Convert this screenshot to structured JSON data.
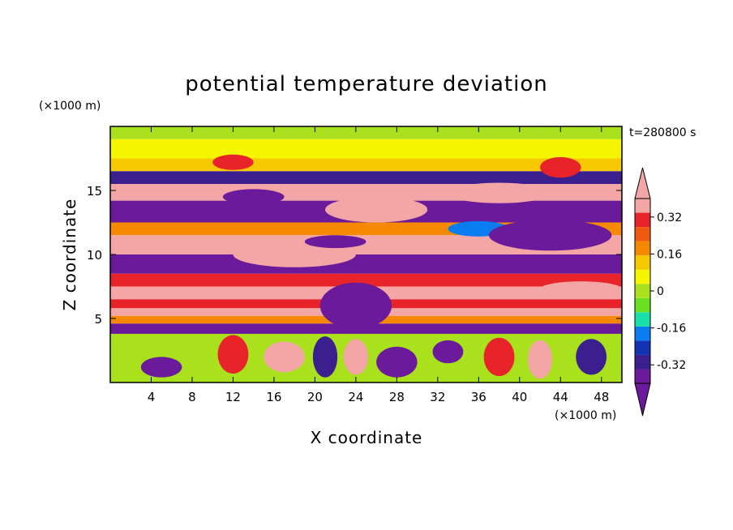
{
  "chart_data": {
    "type": "heatmap",
    "title": "potential temperature deviation",
    "time_label": "t=280800 s",
    "xlabel": "X coordinate",
    "ylabel": "Z coordinate",
    "x_unit": "(×1000 m)",
    "y_unit": "(×1000 m)",
    "xlim": [
      0,
      50
    ],
    "ylim": [
      0,
      20
    ],
    "x_ticks": [
      "4",
      "8",
      "12",
      "16",
      "20",
      "24",
      "28",
      "32",
      "36",
      "40",
      "44",
      "48"
    ],
    "x_tick_values": [
      4,
      8,
      12,
      16,
      20,
      24,
      28,
      32,
      36,
      40,
      44,
      48
    ],
    "y_ticks": [
      "5",
      "10",
      "15"
    ],
    "y_tick_values": [
      5,
      10,
      15
    ],
    "colorbar": {
      "colors": [
        "#6a1a9a",
        "#3b1f8f",
        "#1432b4",
        "#0a7df0",
        "#18e0a6",
        "#69df22",
        "#a9e21c",
        "#f5f500",
        "#f5c800",
        "#f58a00",
        "#f05a10",
        "#e8232a",
        "#f4a6a6"
      ],
      "labels": [
        "-0.32",
        "-0.16",
        "0",
        "0.16",
        "0.32"
      ],
      "label_values": [
        -0.32,
        -0.16,
        0,
        0.16,
        0.32
      ],
      "min": -0.4,
      "max": 0.4,
      "extend": "both"
    },
    "bands": [
      {
        "z": [
          19.0,
          20.0
        ],
        "value": -0.02
      },
      {
        "z": [
          17.5,
          19.0
        ],
        "value": 0.05
      },
      {
        "z": [
          16.5,
          17.5
        ],
        "value": 0.12
      },
      {
        "z": [
          15.5,
          16.5
        ],
        "value": -0.3
      },
      {
        "z": [
          14.2,
          15.5
        ],
        "value": 0.4
      },
      {
        "z": [
          12.5,
          14.2
        ],
        "value": -0.4
      },
      {
        "z": [
          11.5,
          12.5
        ],
        "value": 0.2
      },
      {
        "z": [
          10.0,
          11.5
        ],
        "value": 0.38
      },
      {
        "z": [
          8.5,
          10.0
        ],
        "value": -0.38
      },
      {
        "z": [
          7.5,
          8.5
        ],
        "value": 0.3
      },
      {
        "z": [
          6.5,
          7.5
        ],
        "value": 0.4
      },
      {
        "z": [
          5.8,
          6.5
        ],
        "value": 0.3
      },
      {
        "z": [
          5.2,
          5.8
        ],
        "value": 0.4
      },
      {
        "z": [
          4.6,
          5.2
        ],
        "value": 0.2
      },
      {
        "z": [
          3.8,
          4.6
        ],
        "value": -0.4
      },
      {
        "z": [
          0.0,
          3.8
        ],
        "value": 0.0
      }
    ],
    "blobs": [
      {
        "x": 24.0,
        "z": 6.0,
        "rx": 3.5,
        "rz": 1.8,
        "value": -0.4
      },
      {
        "x": 18.0,
        "z": 10.0,
        "rx": 6.0,
        "rz": 1.0,
        "value": 0.4
      },
      {
        "x": 26.0,
        "z": 13.5,
        "rx": 5.0,
        "rz": 1.0,
        "value": 0.38
      },
      {
        "x": 14.0,
        "z": 14.5,
        "rx": 3.0,
        "rz": 0.6,
        "value": -0.4
      },
      {
        "x": 38.0,
        "z": 14.8,
        "rx": 5.0,
        "rz": 0.8,
        "value": 0.38
      },
      {
        "x": 36.0,
        "z": 12.0,
        "rx": 3.0,
        "rz": 0.6,
        "value": -0.2
      },
      {
        "x": 44.0,
        "z": 16.8,
        "rx": 2.0,
        "rz": 0.8,
        "value": 0.3
      },
      {
        "x": 12.0,
        "z": 17.2,
        "rx": 2.0,
        "rz": 0.6,
        "value": 0.3
      },
      {
        "x": 22.0,
        "z": 11.0,
        "rx": 3.0,
        "rz": 0.5,
        "value": -0.4
      },
      {
        "x": 43.0,
        "z": 11.5,
        "rx": 6.0,
        "rz": 1.2,
        "value": -0.4
      },
      {
        "x": 46.0,
        "z": 7.3,
        "rx": 4.0,
        "rz": 0.6,
        "value": 0.4
      },
      {
        "x": 5.0,
        "z": 1.2,
        "rx": 2.0,
        "rz": 0.8,
        "value": -0.38
      },
      {
        "x": 12.0,
        "z": 2.2,
        "rx": 1.5,
        "rz": 1.5,
        "value": 0.3
      },
      {
        "x": 17.0,
        "z": 2.0,
        "rx": 2.0,
        "rz": 1.2,
        "value": 0.35
      },
      {
        "x": 21.0,
        "z": 2.0,
        "rx": 1.2,
        "rz": 1.6,
        "value": -0.3
      },
      {
        "x": 24.0,
        "z": 2.0,
        "rx": 1.2,
        "rz": 1.4,
        "value": 0.38
      },
      {
        "x": 28.0,
        "z": 1.6,
        "rx": 2.0,
        "rz": 1.2,
        "value": -0.35
      },
      {
        "x": 33.0,
        "z": 2.4,
        "rx": 1.5,
        "rz": 0.9,
        "value": -0.4
      },
      {
        "x": 38.0,
        "z": 2.0,
        "rx": 1.5,
        "rz": 1.5,
        "value": 0.3
      },
      {
        "x": 42.0,
        "z": 1.8,
        "rx": 1.2,
        "rz": 1.5,
        "value": 0.35
      },
      {
        "x": 47.0,
        "z": 2.0,
        "rx": 1.5,
        "rz": 1.4,
        "value": -0.3
      }
    ]
  }
}
